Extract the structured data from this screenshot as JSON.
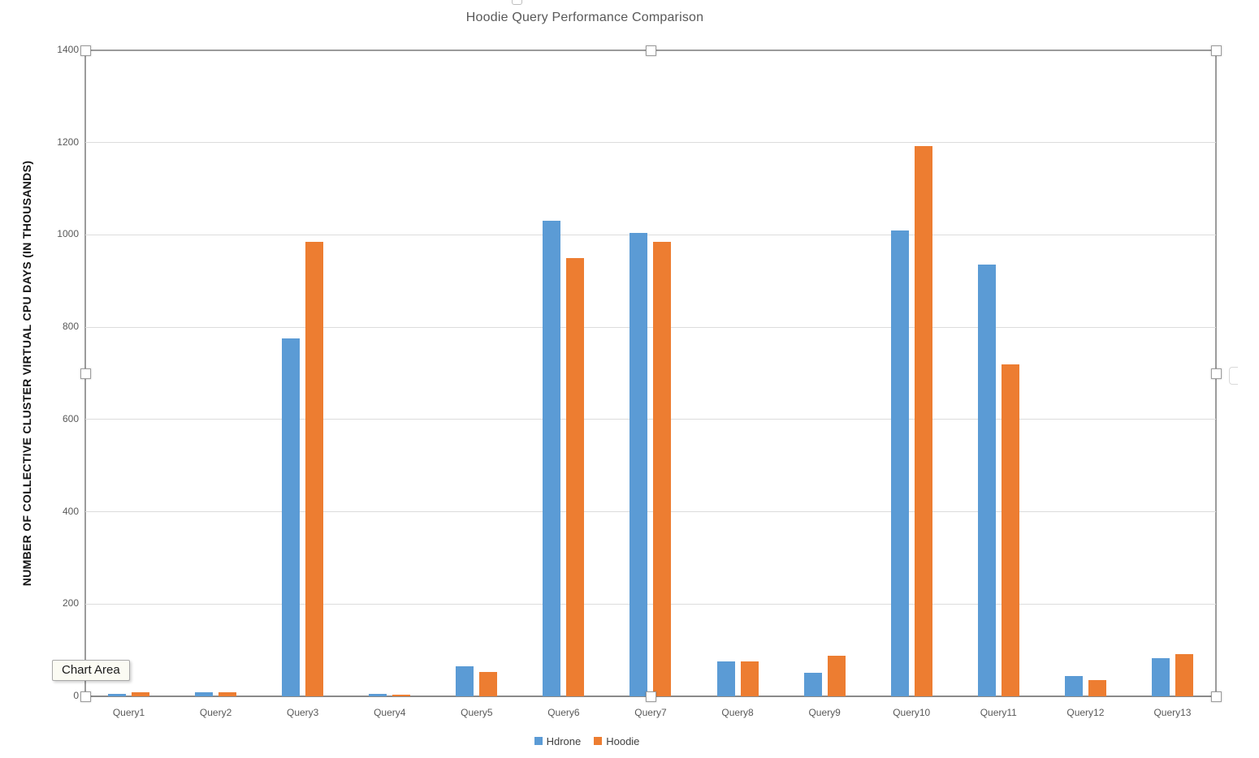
{
  "tooltip": {
    "label": "Chart Area"
  },
  "chart_data": {
    "type": "bar",
    "title": "Hoodie Query Performance Comparison",
    "xlabel": "",
    "ylabel": "NUMBER OF COLLECTIVE CLUSTER VIRTUAL CPU DAYS (IN THOUSANDS)",
    "categories": [
      "Query1",
      "Query2",
      "Query3",
      "Query4",
      "Query5",
      "Query6",
      "Query7",
      "Query8",
      "Query9",
      "Query10",
      "Query11",
      "Query12",
      "Query13"
    ],
    "series": [
      {
        "name": "Hdrone",
        "color": "#5B9BD5",
        "values": [
          5,
          8,
          775,
          5,
          65,
          1030,
          1005,
          75,
          51,
          1009,
          935,
          44,
          82
        ]
      },
      {
        "name": "Hoodie",
        "color": "#ED7D31",
        "values": [
          8,
          8,
          985,
          4,
          53,
          950,
          985,
          75,
          88,
          1193,
          720,
          35,
          91
        ]
      }
    ],
    "ylim": [
      0,
      1400
    ],
    "yticks": [
      0,
      200,
      400,
      600,
      800,
      1000,
      1200,
      1400
    ],
    "grid": true,
    "legend_position": "bottom",
    "selection_state": "chart selected (8 sizing handles visible)"
  }
}
